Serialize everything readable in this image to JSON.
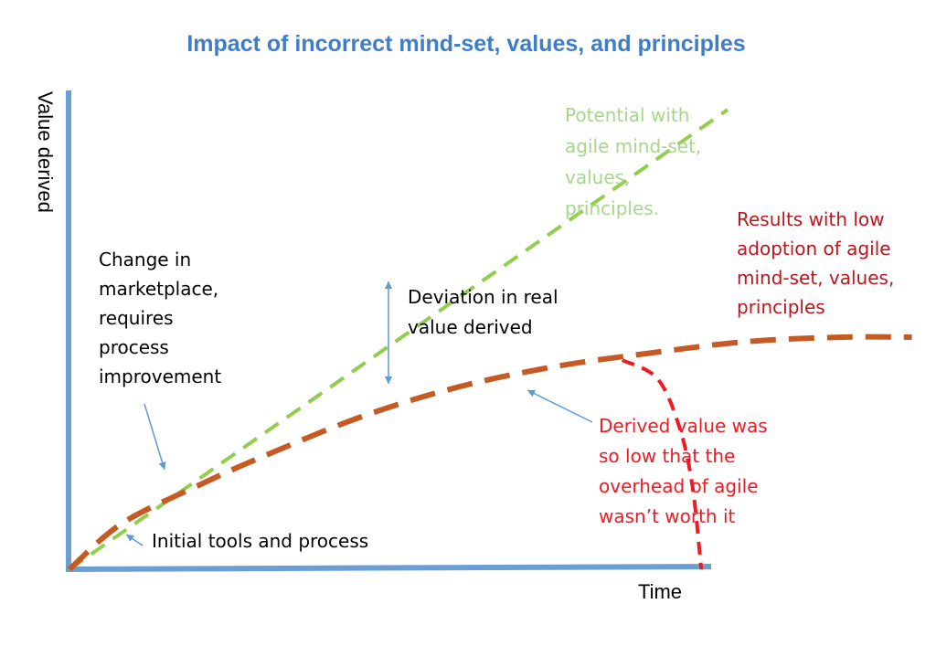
{
  "chart_data": {
    "type": "line",
    "title": "Impact of incorrect mind-set, values, and principles",
    "xlabel": "Time",
    "ylabel": "Value derived",
    "grid": false,
    "x_tick_labels": false,
    "y_tick_labels": false,
    "series": [
      {
        "key": "potential",
        "style": "dashed",
        "points": [
          [
            0,
            0
          ],
          [
            7.5,
            10
          ]
        ]
      },
      {
        "key": "results",
        "style": "dashed",
        "points": [
          [
            0,
            0
          ],
          [
            0.6,
            1.0
          ],
          [
            1.5,
            1.85
          ],
          [
            2.2,
            2.45
          ],
          [
            3.3,
            3.3
          ],
          [
            4.4,
            3.95
          ],
          [
            5.5,
            4.4
          ],
          [
            6.6,
            4.7
          ],
          [
            7.7,
            4.95
          ],
          [
            8.8,
            5.05
          ],
          [
            9.6,
            5.05
          ]
        ]
      },
      {
        "key": "dropoff",
        "style": "dashed",
        "points": [
          [
            6.3,
            4.55
          ],
          [
            6.7,
            4.15
          ],
          [
            6.95,
            3.1
          ],
          [
            7.1,
            1.8
          ],
          [
            7.2,
            0
          ]
        ]
      }
    ],
    "annotations": [
      {
        "key": "potential_label",
        "lines": [
          "Potential with",
          "agile mind-set,",
          "values,",
          "principles."
        ]
      },
      {
        "key": "results_label",
        "lines": [
          "Results with low",
          "adoption of agile",
          "mind-set, values,",
          "principles"
        ]
      },
      {
        "key": "change_label",
        "lines": [
          "Change in",
          "marketplace,",
          "requires",
          "process",
          "improvement"
        ]
      },
      {
        "key": "deviation_label",
        "lines": [
          "Deviation in real",
          "value derived"
        ]
      },
      {
        "key": "derived_label",
        "lines": [
          "Derived value was",
          "so low that the",
          "overhead of agile",
          "wasn’t worth it"
        ]
      },
      {
        "key": "initial_label",
        "lines": [
          "Initial tools and process"
        ]
      }
    ]
  },
  "colors": {
    "title": "#3f7ec6",
    "axis": "#6a9fd6",
    "potential": "#92cd4e",
    "results": "#c55a23",
    "dropoff": "#ee1b24",
    "annotation_arrow": "#5b9ad5",
    "potential_text": "#a8d58c",
    "results_text": "#c0141c",
    "derived_text": "#ee1b24",
    "default_text": "#000000"
  }
}
